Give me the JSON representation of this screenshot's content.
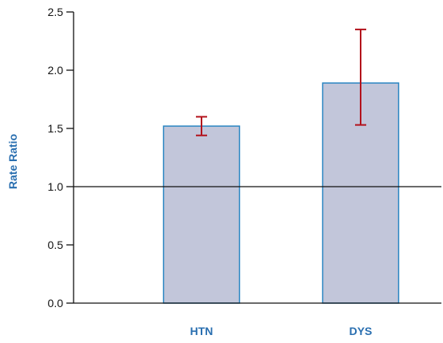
{
  "chart_data": {
    "type": "bar",
    "title": "",
    "xlabel": "",
    "ylabel": "Rate Ratio",
    "categories": [
      "HTN",
      "DYS"
    ],
    "values": [
      1.52,
      1.89
    ],
    "error_bars": [
      {
        "lower": 1.44,
        "upper": 1.6
      },
      {
        "lower": 1.53,
        "upper": 2.35
      }
    ],
    "ylim": [
      0,
      2.5
    ],
    "yticks": [
      "0.0",
      "0.5",
      "1.0",
      "1.5",
      "2.0",
      "2.5"
    ],
    "reference_line": 1.0,
    "grid": false,
    "legend": "none",
    "colors": {
      "bar_fill": "#c2c6da",
      "bar_stroke": "#2a86c2",
      "error_bar": "#b3121c",
      "axis": "#111111",
      "label": "#2a6fb0"
    }
  }
}
